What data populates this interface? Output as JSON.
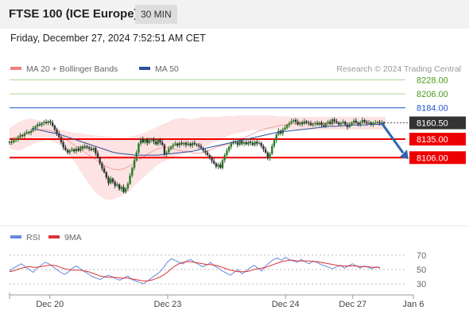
{
  "header": {
    "title": "FTSE 100 (ICE Europe)",
    "timeframe": "30 MIN"
  },
  "datetime": "Friday, December 27, 2024 7:52:51 AM CET",
  "credit": "Research © 2024 Trading Central",
  "colors": {
    "bb": "#f08080",
    "bb_fill": "#fde3e3",
    "ma20": "#f4a0a0",
    "ma50": "#2b4f9a",
    "green": "#a8d890",
    "green_text": "#4a9a1a",
    "blue_level": "#2255cc",
    "red_level": "#ee0000",
    "current_bg": "#333333",
    "up": "#2a7a2a",
    "down": "#333333",
    "rsi": "#6688dd",
    "rsi_ma": "#dd3333",
    "arrow": "#2f65b0"
  },
  "chart_data": [
    {
      "type": "candlestick",
      "legend": [
        {
          "label": "MA 20 + Bollinger Bands",
          "color": "#f08080"
        },
        {
          "label": "MA 50",
          "color": "#2b4f9a"
        }
      ],
      "ylim": [
        8040,
        8245
      ],
      "levels": [
        {
          "value": 8228,
          "label": "8228.00",
          "kind": "resistance-weak"
        },
        {
          "value": 8206,
          "label": "8206.00",
          "kind": "resistance-weak"
        },
        {
          "value": 8184,
          "label": "8184.00",
          "kind": "pivot"
        },
        {
          "value": 8160.5,
          "label": "8160.50",
          "kind": "current"
        },
        {
          "value": 8135,
          "label": "8135.00",
          "kind": "support"
        },
        {
          "value": 8106,
          "label": "8106.00",
          "kind": "support"
        }
      ],
      "close": [
        8131,
        8130,
        8133,
        8135,
        8138,
        8141,
        8140,
        8144,
        8146,
        8145,
        8148,
        8152,
        8155,
        8158,
        8157,
        8160,
        8162,
        8160,
        8163,
        8161,
        8156,
        8150,
        8144,
        8138,
        8130,
        8122,
        8118,
        8114,
        8117,
        8119,
        8116,
        8120,
        8117,
        8123,
        8121,
        8124,
        8122,
        8120,
        8118,
        8121,
        8113,
        8106,
        8097,
        8089,
        8083,
        8075,
        8066,
        8073,
        8068,
        8062,
        8064,
        8057,
        8060,
        8052,
        8058,
        8065,
        8078,
        8090,
        8102,
        8114,
        8128,
        8135,
        8130,
        8134,
        8129,
        8133,
        8135,
        8131,
        8127,
        8134,
        8130,
        8126,
        8111,
        8114,
        8120,
        8123,
        8126,
        8128,
        8125,
        8129,
        8127,
        8129,
        8126,
        8128,
        8125,
        8129,
        8127,
        8126,
        8124,
        8121,
        8117,
        8114,
        8110,
        8106,
        8101,
        8097,
        8092,
        8095,
        8090,
        8102,
        8110,
        8117,
        8123,
        8128,
        8131,
        8130,
        8126,
        8132,
        8128,
        8130,
        8127,
        8131,
        8129,
        8126,
        8131,
        8128,
        8129,
        8124,
        8119,
        8114,
        8105,
        8112,
        8124,
        8133,
        8142,
        8148,
        8144,
        8150,
        8153,
        8157,
        8160,
        8163,
        8165,
        8162,
        8158,
        8161,
        8159,
        8163,
        8161,
        8160,
        8157,
        8159,
        8160,
        8158,
        8161,
        8157,
        8155,
        8160,
        8162,
        8159,
        8166,
        8163,
        8161,
        8158,
        8160,
        8162,
        8158,
        8154,
        8158,
        8161,
        8164,
        8161,
        8158,
        8161,
        8165,
        8162,
        8160,
        8161,
        8158,
        8160,
        8161,
        8162,
        8160,
        8161,
        8160.5
      ],
      "ma20": [
        8136,
        8137,
        8138,
        8139,
        8141,
        8143,
        8144,
        8146,
        8147,
        8148,
        8149,
        8150,
        8150,
        8150,
        8149,
        8148,
        8146,
        8144,
        8141,
        8138,
        8135,
        8132,
        8129,
        8126,
        8123,
        8120,
        8117,
        8114,
        8111,
        8108,
        8105,
        8102,
        8099,
        8096,
        8093,
        8091,
        8089,
        8088,
        8087,
        8087,
        8088,
        8089,
        8091,
        8093,
        8096,
        8099,
        8102,
        8105,
        8108,
        8111,
        8114,
        8116,
        8118,
        8120,
        8121,
        8122,
        8122,
        8121,
        8120,
        8119,
        8118,
        8117,
        8116,
        8116,
        8115,
        8114,
        8113,
        8113,
        8113,
        8114,
        8115,
        8117,
        8119,
        8121,
        8123,
        8124,
        8125,
        8126,
        8127,
        8128,
        8130,
        8132,
        8134,
        8136,
        8138,
        8140,
        8142,
        8144,
        8146,
        8148,
        8149,
        8151,
        8152,
        8153,
        8154,
        8155,
        8156,
        8157,
        8157,
        8158,
        8158,
        8159,
        8159,
        8159,
        8160,
        8160,
        8160,
        8160,
        8160,
        8160,
        8160,
        8160,
        8160,
        8160,
        8160,
        8160,
        8160,
        8160,
        8160,
        8160,
        8160,
        8160,
        8160,
        8160,
        8160,
        8160,
        8160,
        8160,
        8160,
        8160,
        8160,
        8160,
        8160,
        8160,
        8160
      ],
      "bb_upper": [
        8152,
        8155,
        8158,
        8161,
        8163,
        8165,
        8166,
        8167,
        8167,
        8166,
        8165,
        8164,
        8162,
        8160,
        8158,
        8156,
        8154,
        8152,
        8150,
        8149,
        8148,
        8147,
        8146,
        8145,
        8145,
        8144,
        8144,
        8143,
        8142,
        8142,
        8141,
        8141,
        8140,
        8140,
        8139,
        8139,
        8139,
        8138,
        8138,
        8138,
        8138,
        8138,
        8138,
        8139,
        8140,
        8141,
        8142,
        8143,
        8145,
        8147,
        8149,
        8151,
        8153,
        8155,
        8157,
        8159,
        8161,
        8163,
        8165,
        8167,
        8167,
        8168,
        8168,
        8167,
        8166,
        8166,
        8167,
        8168,
        8169,
        8170,
        8170,
        8170,
        8170,
        8170,
        8170,
        8170,
        8171,
        8171,
        8171,
        8171,
        8171,
        8172,
        8172,
        8172,
        8172,
        8172,
        8172,
        8172,
        8172,
        8172,
        8172,
        8172,
        8172,
        8172,
        8172,
        8171,
        8171,
        8171,
        8171,
        8170,
        8170,
        8170,
        8170,
        8170,
        8170,
        8170,
        8170,
        8170,
        8170,
        8170,
        8170,
        8170,
        8170,
        8170,
        8170,
        8170,
        8170,
        8170,
        8170,
        8170,
        8170,
        8170,
        8170,
        8170,
        8170,
        8170,
        8170,
        8170,
        8170,
        8170,
        8170,
        8170,
        8170,
        8170,
        8170
      ],
      "bb_lower": [
        8120,
        8119,
        8118,
        8117,
        8118,
        8120,
        8122,
        8124,
        8126,
        8128,
        8130,
        8131,
        8132,
        8133,
        8133,
        8132,
        8130,
        8128,
        8125,
        8122,
        8118,
        8112,
        8106,
        8100,
        8094,
        8087,
        8080,
        8073,
        8067,
        8061,
        8055,
        8050,
        8046,
        8043,
        8041,
        8040,
        8040,
        8041,
        8042,
        8044,
        8046,
        8049,
        8052,
        8056,
        8060,
        8064,
        8068,
        8072,
        8076,
        8080,
        8084,
        8088,
        8092,
        8095,
        8098,
        8100,
        8102,
        8104,
        8106,
        8108,
        8110,
        8111,
        8112,
        8113,
        8114,
        8115,
        8116,
        8118,
        8120,
        8122,
        8124,
        8126,
        8128,
        8130,
        8132,
        8134,
        8136,
        8138,
        8140,
        8142,
        8143,
        8144,
        8145,
        8146,
        8147,
        8148,
        8148,
        8149,
        8149,
        8149,
        8150,
        8150,
        8150,
        8150,
        8150,
        8150,
        8150,
        8150,
        8150,
        8150,
        8150,
        8150,
        8150,
        8150,
        8150,
        8150,
        8150,
        8150,
        8150,
        8150,
        8150,
        8150,
        8150,
        8150,
        8150,
        8150,
        8150,
        8150,
        8150,
        8150,
        8150,
        8150,
        8150,
        8150,
        8150,
        8150,
        8150,
        8150,
        8150,
        8150,
        8150,
        8150,
        8150,
        8150,
        8150
      ],
      "ma50": [
        8152,
        8150,
        8148,
        8146,
        8144,
        8142,
        8139,
        8136,
        8133,
        8130,
        8127,
        8124,
        8121,
        8118,
        8115,
        8113,
        8112,
        8111,
        8110,
        8110,
        8110,
        8110,
        8110,
        8111,
        8112,
        8113,
        8114,
        8115,
        8116,
        8118,
        8120,
        8122,
        8124,
        8126,
        8128,
        8130,
        8132,
        8134,
        8136,
        8138,
        8140,
        8142,
        8144,
        8146,
        8147,
        8148,
        8149,
        8150,
        8151,
        8152,
        8153,
        8154,
        8155,
        8155,
        8156,
        8156,
        8157,
        8157,
        8157,
        8158,
        8158,
        8158
      ],
      "projection": {
        "from": 8160.5,
        "to": 8106
      }
    },
    {
      "type": "line",
      "legend": [
        {
          "label": "RSI",
          "color": "#6688dd"
        },
        {
          "label": "9MA",
          "color": "#dd3333"
        }
      ],
      "ylim": [
        20,
        80
      ],
      "levels": [
        {
          "value": 70,
          "label": "70"
        },
        {
          "value": 50,
          "label": "50"
        },
        {
          "value": 30,
          "label": "30"
        }
      ],
      "rsi": [
        48,
        52,
        55,
        58,
        54,
        50,
        46,
        52,
        56,
        60,
        58,
        54,
        50,
        46,
        43,
        47,
        52,
        55,
        51,
        47,
        44,
        40,
        38,
        36,
        39,
        42,
        40,
        37,
        35,
        38,
        41,
        36,
        34,
        32,
        30,
        34,
        38,
        42,
        46,
        52,
        60,
        65,
        63,
        60,
        58,
        62,
        64,
        60,
        57,
        54,
        56,
        60,
        55,
        52,
        48,
        45,
        42,
        46,
        50,
        44,
        48,
        52,
        56,
        52,
        48,
        55,
        60,
        64,
        66,
        63,
        67,
        64,
        62,
        60,
        64,
        61,
        58,
        62,
        60,
        57,
        55,
        53,
        51,
        54,
        56,
        52,
        55,
        58,
        55,
        52,
        55,
        53,
        51,
        54,
        52
      ],
      "rsi_ma": [
        47,
        48,
        50,
        52,
        53,
        54,
        53,
        53,
        54,
        55,
        56,
        56,
        55,
        53,
        51,
        50,
        49,
        49,
        49,
        48,
        47,
        45,
        43,
        41,
        40,
        39,
        39,
        39,
        38,
        38,
        38,
        37,
        36,
        35,
        34,
        34,
        35,
        37,
        39,
        42,
        46,
        51,
        55,
        58,
        60,
        61,
        61,
        60,
        59,
        58,
        57,
        57,
        56,
        55,
        53,
        51,
        49,
        48,
        47,
        47,
        47,
        48,
        50,
        51,
        52,
        53,
        55,
        57,
        59,
        61,
        62,
        63,
        63,
        62,
        62,
        62,
        62,
        61,
        61,
        60,
        59,
        58,
        57,
        56,
        55,
        55,
        55,
        55,
        55,
        54,
        54,
        54,
        53,
        53,
        53
      ]
    }
  ],
  "xaxis": {
    "labels": [
      {
        "text": "Dec 20",
        "index": 12
      },
      {
        "text": "Dec 23",
        "index": 47
      },
      {
        "text": "Dec 24",
        "index": 82
      },
      {
        "text": "Dec 27",
        "index": 102
      },
      {
        "text": "Jan 6",
        "index": 120
      }
    ],
    "count": 120
  }
}
